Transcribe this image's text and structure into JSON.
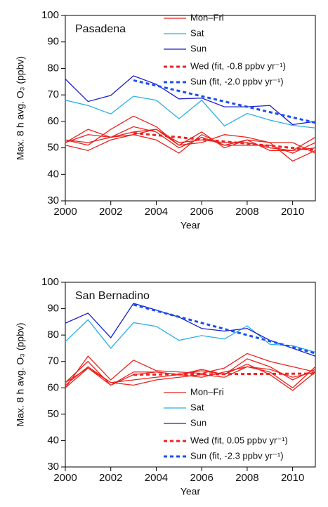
{
  "chart_data": [
    {
      "type": "line",
      "title": "Pasadena",
      "x_label": "Year",
      "y_label": "Max. 8 h avg. O₃ (ppbv)",
      "x": [
        2000,
        2001,
        2002,
        2003,
        2004,
        2005,
        2006,
        2007,
        2008,
        2009,
        2010,
        2011
      ],
      "xlim": [
        2000,
        2011
      ],
      "xticks": [
        2000,
        2002,
        2004,
        2006,
        2008,
        2010
      ],
      "ylim": [
        30,
        100
      ],
      "yticks": [
        30,
        40,
        50,
        60,
        70,
        80,
        90,
        100
      ],
      "legend": "upper right",
      "series": [
        {
          "name": "Mon–Fri",
          "color": "#e8231e",
          "values": [
            [
              53,
              52,
              54,
              56,
              57,
              52,
              53,
              52,
              52,
              50,
              49,
              50
            ],
            [
              52,
              55,
              54,
              58,
              56,
              50,
              54,
              51,
              51,
              51,
              48,
              52
            ],
            [
              51,
              49,
              53,
              55,
              53,
              48,
              55,
              51,
              53,
              52,
              45,
              49
            ],
            [
              53,
              51,
              57,
              62,
              58,
              51,
              52,
              55,
              54,
              52,
              52,
              48
            ],
            [
              52,
              57,
              54,
              55,
              57,
              51,
              56,
              50,
              53,
              49,
              49,
              54
            ]
          ]
        },
        {
          "name": "Sat",
          "color": "#29aee8",
          "values": [
            68,
            66,
            62.8,
            69.5,
            68,
            61,
            68,
            58.3,
            63,
            60.5,
            58.5,
            57.5
          ]
        },
        {
          "name": "Sun",
          "color": "#1c1ec8",
          "values": [
            76,
            67.5,
            69.8,
            77.2,
            74,
            68.5,
            68.8,
            65.5,
            65.5,
            66,
            58.8,
            60
          ]
        },
        {
          "name": "Wed (fit, -0.8 ppbv yr⁻¹)",
          "color": "#ee2222",
          "dashed": true,
          "x": [
            2003,
            2011
          ],
          "values": [
            55.6,
            49.2
          ]
        },
        {
          "name": "Sun (fit, -2.0 ppbv yr⁻¹)",
          "color": "#1a4ff0",
          "dashed": true,
          "x": [
            2003,
            2011
          ],
          "values": [
            75.5,
            59.5
          ]
        }
      ]
    },
    {
      "type": "line",
      "title": "San Bernadino",
      "x_label": "Year",
      "y_label": "Max. 8 h avg. O₃ (ppbv)",
      "x": [
        2000,
        2001,
        2002,
        2003,
        2004,
        2005,
        2006,
        2007,
        2008,
        2009,
        2010,
        2011
      ],
      "xlim": [
        2000,
        2011
      ],
      "xticks": [
        2000,
        2002,
        2004,
        2006,
        2008,
        2010
      ],
      "ylim": [
        30,
        100
      ],
      "yticks": [
        30,
        40,
        50,
        60,
        70,
        80,
        90,
        100
      ],
      "legend": "lower right",
      "series": [
        {
          "name": "Mon–Fri",
          "color": "#e8231e",
          "values": [
            [
              60,
              72,
              63,
              70.5,
              66.5,
              66,
              65.5,
              67.5,
              73,
              70,
              68,
              66
            ],
            [
              62,
              70,
              61,
              66,
              66,
              65,
              66.5,
              65,
              71,
              68,
              63,
              67
            ],
            [
              60,
              67.5,
              62,
              63,
              64,
              65,
              64,
              66,
              68,
              66,
              60,
              68
            ],
            [
              61,
              68,
              62,
              61,
              63,
              64,
              65,
              64,
              68,
              67,
              64,
              66
            ],
            [
              62,
              67.5,
              61,
              65,
              66,
              65,
              67,
              65,
              69,
              65,
              59,
              66
            ]
          ]
        },
        {
          "name": "Sat",
          "color": "#29aee8",
          "values": [
            77.5,
            85.8,
            75,
            84.7,
            83.3,
            78,
            79.8,
            78.5,
            83.5,
            76.5,
            76,
            73.5
          ]
        },
        {
          "name": "Sun",
          "color": "#1c1ec8",
          "values": [
            84.5,
            88.3,
            79,
            92,
            89.5,
            86.8,
            82.5,
            81.5,
            82.5,
            78,
            75,
            72
          ]
        },
        {
          "name": "Wed (fit, 0.05 ppbv yr⁻¹)",
          "color": "#ee2222",
          "dashed": true,
          "x": [
            2003,
            2011
          ],
          "values": [
            65,
            65.4
          ]
        },
        {
          "name": "Sun (fit, -2.3 ppbv yr⁻¹)",
          "color": "#1a4ff0",
          "dashed": true,
          "x": [
            2003,
            2011
          ],
          "values": [
            91.5,
            73.1
          ]
        }
      ]
    }
  ]
}
